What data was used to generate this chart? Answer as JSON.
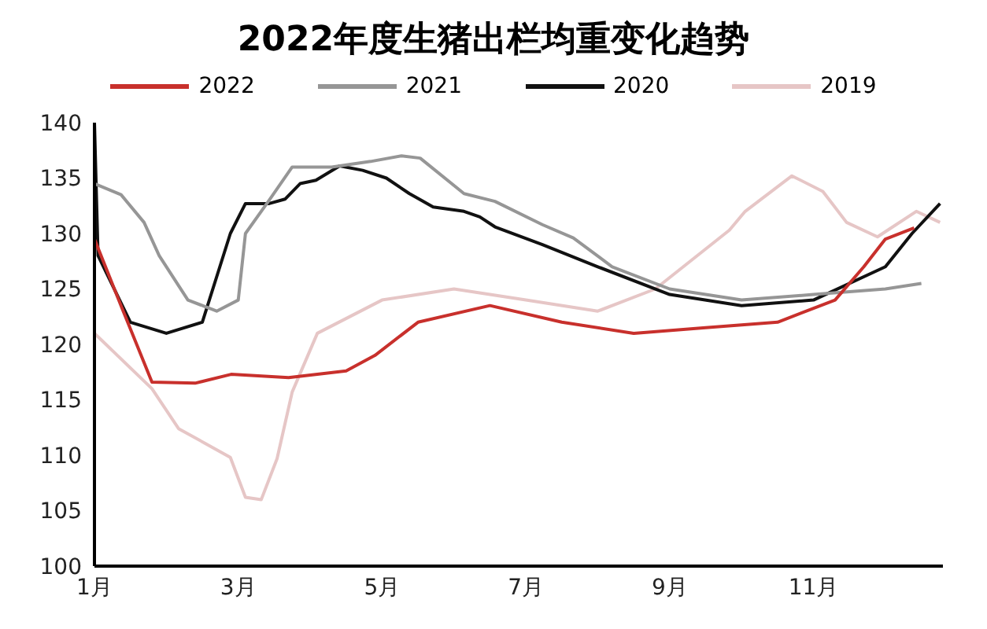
{
  "chart_data": {
    "type": "line",
    "title": "2022年度生猪出栏均重变化趋势",
    "legend": "top",
    "grid": false,
    "marker": "none",
    "line_style": "solid",
    "xlim": [
      1,
      12.8
    ],
    "xticks": [
      {
        "value": 1,
        "label": "1月"
      },
      {
        "value": 3,
        "label": "3月"
      },
      {
        "value": 5,
        "label": "5月"
      },
      {
        "value": 7,
        "label": "7月"
      },
      {
        "value": 9,
        "label": "9月"
      },
      {
        "value": 11,
        "label": "11月"
      }
    ],
    "ylim": [
      100,
      140
    ],
    "yticks": [
      100,
      105,
      110,
      115,
      120,
      125,
      130,
      135,
      140
    ],
    "series": [
      {
        "name": "2022",
        "color": "#c8302c",
        "x": [
          1,
          1.4,
          1.8,
          2.4,
          2.9,
          3.7,
          4.5,
          4.9,
          5.5,
          6.5,
          7.5,
          8.5,
          9.5,
          10.5,
          11.3,
          11.7,
          12,
          12.4
        ],
        "values": [
          129.5,
          123,
          116.6,
          116.5,
          117.3,
          117,
          117.6,
          119,
          122,
          123.5,
          122,
          121,
          121.5,
          122,
          124,
          127,
          129.5,
          130.5
        ]
      },
      {
        "name": "2021",
        "color": "#969696",
        "x": [
          1,
          1.37,
          1.69,
          1.9,
          2.3,
          2.7,
          3,
          3.1,
          3.43,
          3.75,
          4.3,
          4.84,
          5.27,
          5.53,
          6.14,
          6.57,
          7.23,
          7.66,
          8.2,
          9,
          10,
          11,
          12,
          12.5
        ],
        "values": [
          134.5,
          133.5,
          131,
          128,
          124,
          123,
          124,
          130,
          133,
          136,
          136,
          136.5,
          137,
          136.8,
          133.6,
          132.9,
          130.8,
          129.6,
          127,
          125,
          124,
          124.5,
          125,
          125.5
        ]
      },
      {
        "name": "2020",
        "color": "#111111",
        "x": [
          1,
          1.05,
          1.5,
          2,
          2.5,
          2.89,
          3.1,
          3.43,
          3.65,
          3.86,
          4.08,
          4.41,
          4.73,
          5.06,
          5.38,
          5.71,
          6.14,
          6.36,
          6.57,
          7.23,
          8,
          9,
          10,
          11,
          12,
          12.37,
          12.76
        ],
        "values": [
          140,
          128,
          122,
          121,
          122,
          130,
          132.7,
          132.7,
          133.1,
          134.5,
          134.8,
          136.1,
          135.7,
          135,
          133.6,
          132.4,
          132,
          131.5,
          130.6,
          129,
          127,
          124.5,
          123.5,
          124,
          127,
          130,
          132.7
        ]
      },
      {
        "name": "2019",
        "color": "#e6c6c6",
        "x": [
          1,
          1.8,
          2.17,
          2.56,
          2.89,
          3.1,
          3.32,
          3.54,
          3.75,
          4.1,
          5,
          6,
          7,
          8,
          8.8,
          9.83,
          10.05,
          10.7,
          11.13,
          11.46,
          11.89,
          12.43,
          12.76
        ],
        "values": [
          121,
          116,
          112.4,
          111,
          109.8,
          106.2,
          106,
          109.7,
          115.7,
          121,
          124,
          125,
          124,
          123,
          125,
          130.3,
          132,
          135.2,
          133.8,
          131,
          129.7,
          132,
          131
        ]
      }
    ]
  }
}
